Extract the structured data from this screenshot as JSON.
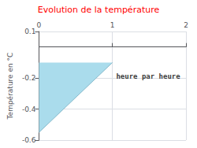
{
  "chart_data": {
    "type": "line",
    "title": "Evolution de la température",
    "title_color": "#ff0000",
    "ylabel": "Température en °C",
    "x": [
      0,
      1
    ],
    "values": [
      -0.55,
      -0.1
    ],
    "fill_to": -0.1,
    "color": "#88bbcc",
    "fill_color": "#aadcec",
    "xlim": [
      0,
      2
    ],
    "xticks": [
      0,
      1,
      2
    ],
    "ylim": [
      -0.6,
      0.1
    ],
    "yticks": [
      -0.6,
      -0.4,
      -0.2,
      0.1
    ],
    "grid": true,
    "annotations": [
      {
        "text": "heure par heure",
        "x": 1.05,
        "y": -0.19
      }
    ]
  }
}
